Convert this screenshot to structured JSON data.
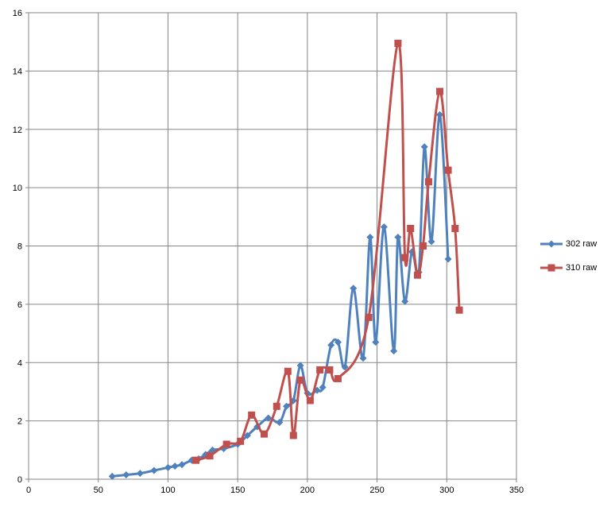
{
  "chart_data": {
    "type": "scatter",
    "title": "",
    "xlabel": "",
    "ylabel": "",
    "xlim": [
      0,
      350
    ],
    "ylim": [
      0,
      16
    ],
    "x_ticks": [
      0,
      50,
      100,
      150,
      200,
      250,
      300,
      350
    ],
    "y_ticks": [
      0,
      2,
      4,
      6,
      8,
      10,
      12,
      14,
      16
    ],
    "grid": true,
    "legend_position": "right",
    "series": [
      {
        "name": "302 raw",
        "color": "#4F81BD",
        "marker": "diamond",
        "x": [
          60,
          70,
          80,
          90,
          100,
          105,
          110,
          117,
          122,
          127,
          132,
          140,
          150,
          157,
          164,
          172,
          180,
          185,
          190,
          195,
          200,
          207,
          211,
          217,
          222,
          227,
          233,
          240,
          245,
          249,
          255,
          262,
          265,
          270,
          275,
          280,
          284,
          289,
          295,
          301
        ],
        "y": [
          0.1,
          0.15,
          0.2,
          0.3,
          0.4,
          0.45,
          0.5,
          0.65,
          0.7,
          0.85,
          1.0,
          1.05,
          1.2,
          1.5,
          1.8,
          2.1,
          1.95,
          2.5,
          2.7,
          3.9,
          2.95,
          3.05,
          3.15,
          4.6,
          4.7,
          3.85,
          6.55,
          4.15,
          8.3,
          4.7,
          8.65,
          4.4,
          8.3,
          6.1,
          7.8,
          7.1,
          11.4,
          8.15,
          12.5,
          7.55
        ]
      },
      {
        "name": "310 raw",
        "color": "#C0504D",
        "marker": "square",
        "x": [
          120,
          130,
          142,
          152,
          160,
          169,
          178,
          186,
          190,
          195,
          202,
          209,
          216,
          222,
          244,
          265,
          270,
          274,
          279,
          283,
          287,
          295,
          301,
          306,
          309
        ],
        "y": [
          0.65,
          0.8,
          1.2,
          1.3,
          2.2,
          1.55,
          2.5,
          3.7,
          1.5,
          3.4,
          2.7,
          3.75,
          3.75,
          3.45,
          5.55,
          14.95,
          7.6,
          8.6,
          7.0,
          8.0,
          10.2,
          13.3,
          10.6,
          8.6,
          5.8
        ]
      }
    ]
  }
}
